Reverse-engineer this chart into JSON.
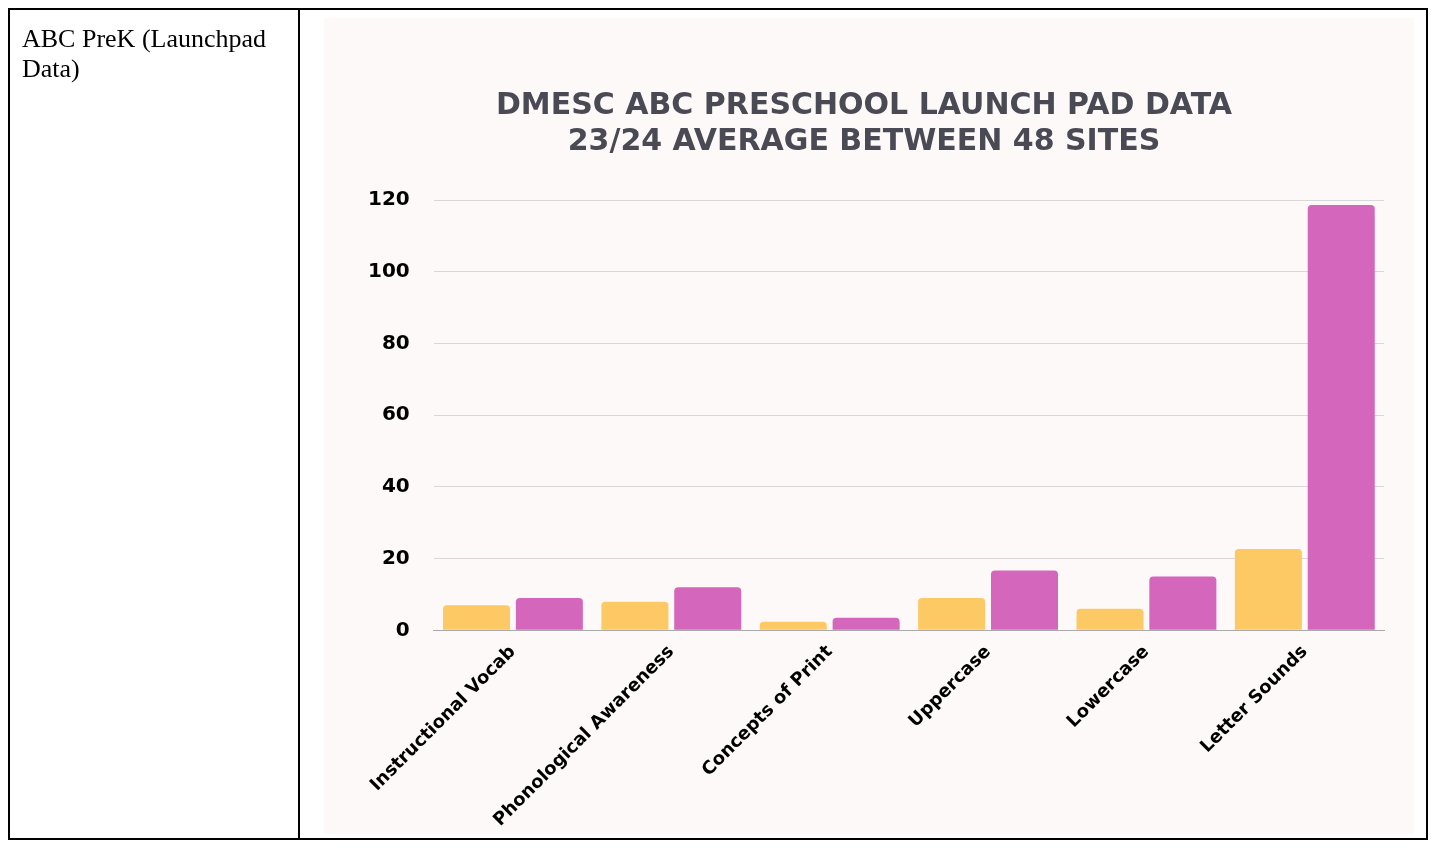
{
  "chart_data": {
    "type": "bar",
    "title": [
      "DMESC ABC PRESCHOOL LAUNCH PAD DATA",
      "23/24 AVERAGE BETWEEN 48 SITES"
    ],
    "annotations": [
      "ABC PreK (Launchpad Data)"
    ],
    "categories": [
      "Instructional Vocab",
      "Phonological Awareness",
      "Concepts of Print",
      "Uppercase",
      "Lowercase",
      "Letter Sounds"
    ],
    "series": [
      {
        "color": "#fdc964",
        "values": [
          7,
          8,
          2.4,
          9,
          6,
          22.7
        ]
      },
      {
        "color": "#d466bc",
        "values": [
          9,
          12,
          3.5,
          16.7,
          15,
          118.6
        ]
      }
    ],
    "ylim": [
      0,
      120
    ],
    "yticks": [
      0,
      20,
      40,
      60,
      80,
      100,
      120
    ],
    "grid": "y",
    "legend": false
  }
}
